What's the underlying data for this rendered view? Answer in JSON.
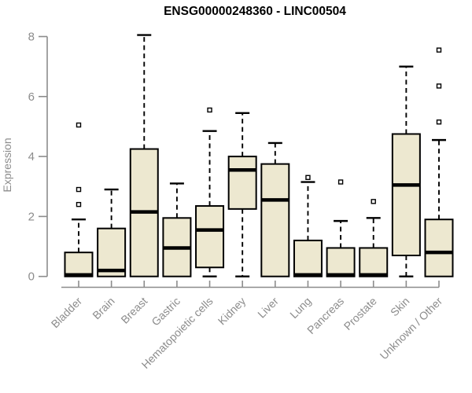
{
  "chart_data": {
    "type": "boxplot",
    "title": "ENSG00000248360 - LINC00504",
    "ylabel": "Expression",
    "xlabel": "",
    "ylim": [
      0,
      8
    ],
    "yticks": [
      0,
      2,
      4,
      6,
      8
    ],
    "grid": false,
    "legend_position": "none",
    "categories": [
      "Bladder",
      "Brain",
      "Breast",
      "Gastric",
      "Hematopoietic cells",
      "Kidney",
      "Liver",
      "Lung",
      "Pancreas",
      "Prostate",
      "Skin",
      "Unknown / Other"
    ],
    "boxes": [
      {
        "category": "Bladder",
        "whisker_low": 0,
        "q1": 0,
        "median": 0.05,
        "q3": 0.8,
        "whisker_high": 1.9,
        "outliers": [
          2.4,
          2.9,
          5.05
        ]
      },
      {
        "category": "Brain",
        "whisker_low": 0,
        "q1": 0,
        "median": 0.2,
        "q3": 1.6,
        "whisker_high": 2.9,
        "outliers": []
      },
      {
        "category": "Breast",
        "whisker_low": 0,
        "q1": 0,
        "median": 2.15,
        "q3": 4.25,
        "whisker_high": 8.05,
        "outliers": []
      },
      {
        "category": "Gastric",
        "whisker_low": 0,
        "q1": 0,
        "median": 0.95,
        "q3": 1.95,
        "whisker_high": 3.1,
        "outliers": []
      },
      {
        "category": "Hematopoietic cells",
        "whisker_low": 0,
        "q1": 0.3,
        "median": 1.55,
        "q3": 2.35,
        "whisker_high": 4.85,
        "outliers": [
          5.55
        ]
      },
      {
        "category": "Kidney",
        "whisker_low": 0,
        "q1": 2.25,
        "median": 3.55,
        "q3": 4.0,
        "whisker_high": 5.45,
        "outliers": []
      },
      {
        "category": "Liver",
        "whisker_low": 0,
        "q1": 0,
        "median": 2.55,
        "q3": 3.75,
        "whisker_high": 4.45,
        "outliers": []
      },
      {
        "category": "Lung",
        "whisker_low": 0,
        "q1": 0,
        "median": 0.05,
        "q3": 1.2,
        "whisker_high": 3.15,
        "outliers": [
          3.3
        ]
      },
      {
        "category": "Pancreas",
        "whisker_low": 0,
        "q1": 0,
        "median": 0.05,
        "q3": 0.95,
        "whisker_high": 1.85,
        "outliers": [
          3.15
        ]
      },
      {
        "category": "Prostate",
        "whisker_low": 0,
        "q1": 0,
        "median": 0.05,
        "q3": 0.95,
        "whisker_high": 1.95,
        "outliers": [
          2.5
        ]
      },
      {
        "category": "Skin",
        "whisker_low": 0,
        "q1": 0.7,
        "median": 3.05,
        "q3": 4.75,
        "whisker_high": 7.0,
        "outliers": []
      },
      {
        "category": "Unknown / Other",
        "whisker_low": 0,
        "q1": 0,
        "median": 0.8,
        "q3": 1.9,
        "whisker_high": 4.55,
        "outliers": [
          5.15,
          6.35,
          7.55
        ]
      }
    ],
    "colors": {
      "box_fill": "#EDE8D0",
      "box_border": "#000000",
      "median": "#000000",
      "whisker": "#000000",
      "outlier": "#000000",
      "outlier_fill": "#FFFFFF",
      "axis": "#8C8C8C",
      "axis_text": "#8C8C8C",
      "title": "#000000",
      "background": "#FFFFFF"
    }
  }
}
